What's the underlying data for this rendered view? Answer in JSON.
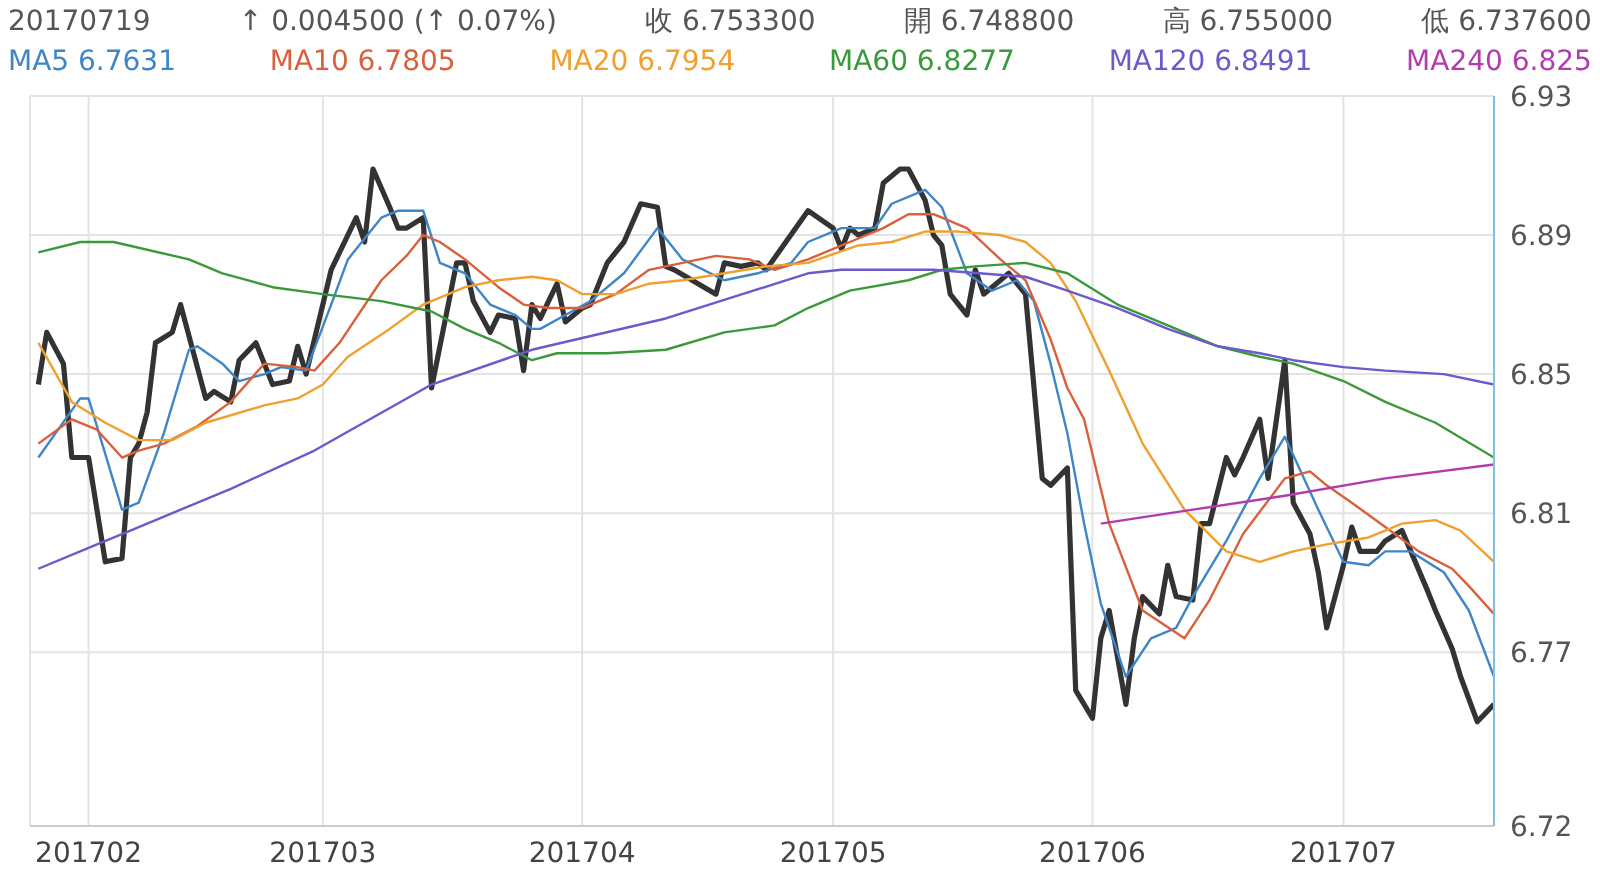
{
  "chart_data": {
    "type": "line",
    "annotations": [
      "20170719",
      "↑ 0.004500 (↑ 0.07%)",
      "收 6.753300",
      "開 6.748800",
      "高 6.755000",
      "低 6.737600"
    ],
    "xlim": [
      "2017-01-25",
      "2017-07-19"
    ],
    "xticks": [
      {
        "value": "2017-02-01",
        "label": "201702"
      },
      {
        "value": "2017-03-01",
        "label": "201703"
      },
      {
        "value": "2017-04-01",
        "label": "201704"
      },
      {
        "value": "2017-05-01",
        "label": "201705"
      },
      {
        "value": "2017-06-01",
        "label": "201706"
      },
      {
        "value": "2017-07-01",
        "label": "201707"
      }
    ],
    "ylim": [
      6.72,
      6.93
    ],
    "yticks": [
      6.72,
      6.77,
      6.81,
      6.85,
      6.89,
      6.93
    ],
    "grid": true,
    "legend": "top",
    "series": [
      {
        "color": "#333333",
        "x": [
          "2017-01-26",
          "2017-01-27",
          "2017-01-29",
          "2017-01-30",
          "2017-01-31",
          "2017-02-01",
          "2017-02-03",
          "2017-02-05",
          "2017-02-06",
          "2017-02-07",
          "2017-02-08",
          "2017-02-09",
          "2017-02-11",
          "2017-02-12",
          "2017-02-15",
          "2017-02-16",
          "2017-02-18",
          "2017-02-19",
          "2017-02-21",
          "2017-02-23",
          "2017-02-25",
          "2017-02-26",
          "2017-02-27",
          "2017-03-02",
          "2017-03-05",
          "2017-03-06",
          "2017-03-07",
          "2017-03-09",
          "2017-03-10",
          "2017-03-11",
          "2017-03-13",
          "2017-03-14",
          "2017-03-17",
          "2017-03-18",
          "2017-03-19",
          "2017-03-21",
          "2017-03-22",
          "2017-03-24",
          "2017-03-25",
          "2017-03-26",
          "2017-03-27",
          "2017-03-29",
          "2017-03-30",
          "2017-04-01",
          "2017-04-02",
          "2017-04-04",
          "2017-04-06",
          "2017-04-08",
          "2017-04-10",
          "2017-04-11",
          "2017-04-12",
          "2017-04-17",
          "2017-04-18",
          "2017-04-20",
          "2017-04-22",
          "2017-04-23",
          "2017-04-28",
          "2017-05-01",
          "2017-05-02",
          "2017-05-03",
          "2017-05-04",
          "2017-05-06",
          "2017-05-07",
          "2017-05-09",
          "2017-05-10",
          "2017-05-12",
          "2017-05-13",
          "2017-05-14",
          "2017-05-15",
          "2017-05-17",
          "2017-05-18",
          "2017-05-19",
          "2017-05-22",
          "2017-05-24",
          "2017-05-26",
          "2017-05-27",
          "2017-05-29",
          "2017-05-30",
          "2017-06-01",
          "2017-06-02",
          "2017-06-03",
          "2017-06-05",
          "2017-06-06",
          "2017-06-07",
          "2017-06-09",
          "2017-06-10",
          "2017-06-11",
          "2017-06-13",
          "2017-06-14",
          "2017-06-15",
          "2017-06-17",
          "2017-06-18",
          "2017-06-19",
          "2017-06-21",
          "2017-06-22",
          "2017-06-24",
          "2017-06-25",
          "2017-06-27",
          "2017-06-28",
          "2017-06-29",
          "2017-07-01",
          "2017-07-02",
          "2017-07-03",
          "2017-07-05",
          "2017-07-06",
          "2017-07-08",
          "2017-07-11",
          "2017-07-12",
          "2017-07-14",
          "2017-07-15",
          "2017-07-17",
          "2017-07-19"
        ],
        "values": [
          6.847,
          6.862,
          6.853,
          6.826,
          6.826,
          6.826,
          6.796,
          6.797,
          6.826,
          6.83,
          6.839,
          6.859,
          6.862,
          6.87,
          6.843,
          6.845,
          6.842,
          6.854,
          6.859,
          6.847,
          6.848,
          6.858,
          6.85,
          6.88,
          6.895,
          6.888,
          6.909,
          6.898,
          6.892,
          6.892,
          6.895,
          6.846,
          6.882,
          6.882,
          6.871,
          6.862,
          6.867,
          6.866,
          6.851,
          6.87,
          6.866,
          6.876,
          6.865,
          6.869,
          6.87,
          6.882,
          6.888,
          6.899,
          6.898,
          6.881,
          6.88,
          6.873,
          6.882,
          6.881,
          6.882,
          6.88,
          6.897,
          6.892,
          6.886,
          6.892,
          6.89,
          6.892,
          6.905,
          6.909,
          6.909,
          6.9,
          6.89,
          6.887,
          6.873,
          6.867,
          6.88,
          6.873,
          6.879,
          6.873,
          6.82,
          6.818,
          6.823,
          6.759,
          6.751,
          6.774,
          6.782,
          6.755,
          6.774,
          6.786,
          6.781,
          6.795,
          6.786,
          6.785,
          6.807,
          6.807,
          6.826,
          6.821,
          6.826,
          6.837,
          6.82,
          6.854,
          6.813,
          6.804,
          6.793,
          6.777,
          6.795,
          6.806,
          6.799,
          6.799,
          6.802,
          6.805,
          6.788,
          6.782,
          6.771,
          6.763,
          6.75,
          6.755
        ]
      },
      {
        "name": "MA5 6.7631",
        "color": "#3f86c8",
        "x": [
          "2017-01-26",
          "2017-01-31",
          "2017-02-01",
          "2017-02-05",
          "2017-02-07",
          "2017-02-10",
          "2017-02-13",
          "2017-02-14",
          "2017-02-17",
          "2017-02-19",
          "2017-02-22",
          "2017-02-24",
          "2017-02-27",
          "2017-03-02",
          "2017-03-04",
          "2017-03-08",
          "2017-03-10",
          "2017-03-13",
          "2017-03-15",
          "2017-03-18",
          "2017-03-21",
          "2017-03-24",
          "2017-03-26",
          "2017-03-27",
          "2017-03-30",
          "2017-04-02",
          "2017-04-06",
          "2017-04-10",
          "2017-04-13",
          "2017-04-18",
          "2017-04-22",
          "2017-04-26",
          "2017-04-28",
          "2017-05-02",
          "2017-05-06",
          "2017-05-08",
          "2017-05-12",
          "2017-05-14",
          "2017-05-17",
          "2017-05-20",
          "2017-05-23",
          "2017-05-25",
          "2017-05-27",
          "2017-05-29",
          "2017-05-31",
          "2017-06-02",
          "2017-06-05",
          "2017-06-08",
          "2017-06-11",
          "2017-06-13",
          "2017-06-17",
          "2017-06-21",
          "2017-06-24",
          "2017-06-28",
          "2017-07-01",
          "2017-07-04",
          "2017-07-06",
          "2017-07-09",
          "2017-07-13",
          "2017-07-16",
          "2017-07-19"
        ],
        "values": [
          6.826,
          6.843,
          6.843,
          6.811,
          6.813,
          6.833,
          6.857,
          6.858,
          6.853,
          6.848,
          6.85,
          6.852,
          6.851,
          6.87,
          6.883,
          6.895,
          6.897,
          6.897,
          6.882,
          6.879,
          6.87,
          6.867,
          6.863,
          6.863,
          6.867,
          6.871,
          6.879,
          6.892,
          6.883,
          6.877,
          6.879,
          6.882,
          6.888,
          6.892,
          6.892,
          6.899,
          6.903,
          6.898,
          6.879,
          6.874,
          6.877,
          6.871,
          6.853,
          6.833,
          6.807,
          6.784,
          6.763,
          6.774,
          6.777,
          6.786,
          6.802,
          6.82,
          6.832,
          6.811,
          6.796,
          6.795,
          6.799,
          6.799,
          6.793,
          6.782,
          6.763
        ]
      },
      {
        "name": "MA10 6.7805",
        "color": "#d9603b",
        "x": [
          "2017-01-26",
          "2017-01-30",
          "2017-02-02",
          "2017-02-05",
          "2017-02-07",
          "2017-02-10",
          "2017-02-14",
          "2017-02-18",
          "2017-02-22",
          "2017-02-26",
          "2017-02-28",
          "2017-03-03",
          "2017-03-08",
          "2017-03-11",
          "2017-03-13",
          "2017-03-15",
          "2017-03-18",
          "2017-03-22",
          "2017-03-25",
          "2017-03-28",
          "2017-04-01",
          "2017-04-05",
          "2017-04-09",
          "2017-04-13",
          "2017-04-17",
          "2017-04-21",
          "2017-04-24",
          "2017-04-28",
          "2017-05-03",
          "2017-05-07",
          "2017-05-10",
          "2017-05-13",
          "2017-05-17",
          "2017-05-21",
          "2017-05-24",
          "2017-05-27",
          "2017-05-29",
          "2017-05-31",
          "2017-06-03",
          "2017-06-07",
          "2017-06-12",
          "2017-06-15",
          "2017-06-19",
          "2017-06-24",
          "2017-06-27",
          "2017-06-29",
          "2017-07-02",
          "2017-07-06",
          "2017-07-10",
          "2017-07-14",
          "2017-07-16",
          "2017-07-19"
        ],
        "values": [
          6.83,
          6.837,
          6.834,
          6.826,
          6.828,
          6.83,
          6.835,
          6.842,
          6.853,
          6.852,
          6.851,
          6.859,
          6.877,
          6.884,
          6.89,
          6.888,
          6.883,
          6.875,
          6.87,
          6.869,
          6.869,
          6.873,
          6.88,
          6.882,
          6.884,
          6.883,
          6.88,
          6.883,
          6.888,
          6.892,
          6.896,
          6.896,
          6.892,
          6.883,
          6.877,
          6.86,
          6.846,
          6.837,
          6.807,
          6.782,
          6.774,
          6.785,
          6.804,
          6.82,
          6.822,
          6.818,
          6.813,
          6.806,
          6.799,
          6.794,
          6.789,
          6.781
        ]
      },
      {
        "name": "MA20 6.7954",
        "color": "#f0a030",
        "x": [
          "2017-01-26",
          "2017-01-30",
          "2017-02-03",
          "2017-02-07",
          "2017-02-11",
          "2017-02-15",
          "2017-02-22",
          "2017-02-26",
          "2017-03-01",
          "2017-03-04",
          "2017-03-09",
          "2017-03-13",
          "2017-03-18",
          "2017-03-22",
          "2017-03-26",
          "2017-03-29",
          "2017-04-01",
          "2017-04-05",
          "2017-04-09",
          "2017-04-13",
          "2017-04-18",
          "2017-04-23",
          "2017-04-28",
          "2017-05-04",
          "2017-05-08",
          "2017-05-12",
          "2017-05-16",
          "2017-05-21",
          "2017-05-24",
          "2017-05-27",
          "2017-05-30",
          "2017-06-03",
          "2017-06-07",
          "2017-06-12",
          "2017-06-17",
          "2017-06-21",
          "2017-06-25",
          "2017-06-29",
          "2017-07-04",
          "2017-07-08",
          "2017-07-12",
          "2017-07-15",
          "2017-07-19"
        ],
        "values": [
          6.859,
          6.842,
          6.836,
          6.831,
          6.831,
          6.836,
          6.841,
          6.843,
          6.847,
          6.855,
          6.863,
          6.87,
          6.875,
          6.877,
          6.878,
          6.877,
          6.873,
          6.873,
          6.876,
          6.877,
          6.879,
          6.881,
          6.882,
          6.887,
          6.888,
          6.891,
          6.891,
          6.89,
          6.888,
          6.882,
          6.871,
          6.851,
          6.83,
          6.811,
          6.799,
          6.796,
          6.799,
          6.801,
          6.803,
          6.807,
          6.808,
          6.805,
          6.796
        ]
      },
      {
        "name": "MA60 6.8277",
        "color": "#3a9a3a",
        "x": [
          "2017-01-26",
          "2017-01-31",
          "2017-02-04",
          "2017-02-13",
          "2017-02-17",
          "2017-02-23",
          "2017-03-01",
          "2017-03-08",
          "2017-03-14",
          "2017-03-18",
          "2017-03-22",
          "2017-03-26",
          "2017-03-29",
          "2017-04-04",
          "2017-04-11",
          "2017-04-18",
          "2017-04-24",
          "2017-04-28",
          "2017-05-03",
          "2017-05-10",
          "2017-05-14",
          "2017-05-18",
          "2017-05-24",
          "2017-05-29",
          "2017-06-04",
          "2017-06-10",
          "2017-06-16",
          "2017-06-21",
          "2017-06-25",
          "2017-07-01",
          "2017-07-06",
          "2017-07-12",
          "2017-07-19"
        ],
        "values": [
          6.885,
          6.888,
          6.888,
          6.883,
          6.879,
          6.875,
          6.873,
          6.871,
          6.868,
          6.863,
          6.859,
          6.854,
          6.856,
          6.856,
          6.857,
          6.862,
          6.864,
          6.869,
          6.874,
          6.877,
          6.88,
          6.881,
          6.882,
          6.879,
          6.87,
          6.864,
          6.858,
          6.855,
          6.853,
          6.848,
          6.842,
          6.836,
          6.826
        ]
      },
      {
        "name": "MA120 6.8491",
        "color": "#6a5acd",
        "x": [
          "2017-01-26",
          "2017-02-01",
          "2017-02-06",
          "2017-02-18",
          "2017-02-28",
          "2017-03-14",
          "2017-03-26",
          "2017-04-11",
          "2017-04-28",
          "2017-05-02",
          "2017-05-13",
          "2017-05-24",
          "2017-05-29",
          "2017-06-04",
          "2017-06-10",
          "2017-06-16",
          "2017-06-21",
          "2017-06-25",
          "2017-07-01",
          "2017-07-06",
          "2017-07-13",
          "2017-07-19"
        ],
        "values": [
          6.794,
          6.8,
          6.805,
          6.817,
          6.828,
          6.847,
          6.857,
          6.866,
          6.879,
          6.88,
          6.88,
          6.878,
          6.874,
          6.869,
          6.863,
          6.858,
          6.856,
          6.854,
          6.852,
          6.851,
          6.85,
          6.847
        ]
      },
      {
        "name": "MA240 6.825",
        "color": "#b03cb0",
        "x": [
          "2017-06-02",
          "2017-06-13",
          "2017-06-24",
          "2017-07-06",
          "2017-07-19"
        ],
        "values": [
          6.807,
          6.811,
          6.815,
          6.82,
          6.824
        ]
      }
    ]
  }
}
